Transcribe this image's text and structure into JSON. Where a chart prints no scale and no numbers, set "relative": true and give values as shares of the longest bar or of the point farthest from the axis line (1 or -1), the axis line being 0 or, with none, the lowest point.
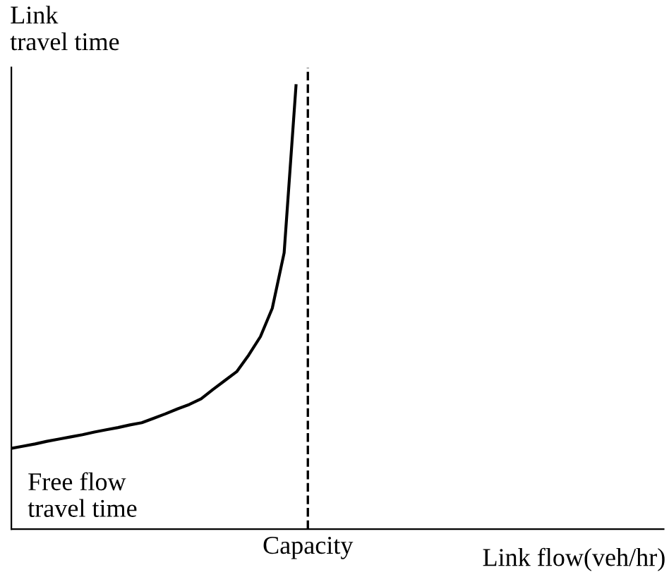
{
  "chart_data": {
    "type": "line",
    "relative": true,
    "xlabel": "Link flow(veh/hr)",
    "ylabel": "Link\ntravel time",
    "categories": [
      null,
      null,
      null,
      null,
      null,
      null,
      null,
      null,
      null,
      null,
      null,
      null,
      null,
      null,
      null,
      null,
      null,
      null,
      null,
      null,
      null,
      null,
      null,
      null,
      null,
      null,
      null,
      null,
      null,
      null,
      null,
      null,
      null,
      null,
      null,
      null,
      null,
      null,
      null,
      null,
      null,
      null,
      null,
      null,
      null,
      null,
      null,
      null,
      null,
      null,
      null,
      null,
      null,
      null,
      null,
      null
    ],
    "series": [
      {
        "color": "#000000",
        "values": [
          0.182,
          0.187,
          0.192,
          0.198,
          0.203,
          0.208,
          0.213,
          0.219,
          0.224,
          0.229,
          0.235,
          0.24,
          0.25,
          0.26,
          0.271,
          0.281,
          0.294,
          0.315,
          0.335,
          0.355,
          0.392,
          0.434,
          0.498,
          0.623,
          1.0,
          null,
          null,
          null,
          null,
          null,
          null,
          null,
          null,
          null,
          null,
          null,
          null,
          null,
          null,
          null,
          null,
          null,
          null,
          null,
          null,
          null,
          null,
          null,
          null,
          null,
          null,
          null,
          null,
          null,
          null,
          null
        ]
      }
    ],
    "marker": "none",
    "line_style": "solid",
    "annotations": [
      "Free flow\ntravel time",
      "Capacity"
    ]
  }
}
